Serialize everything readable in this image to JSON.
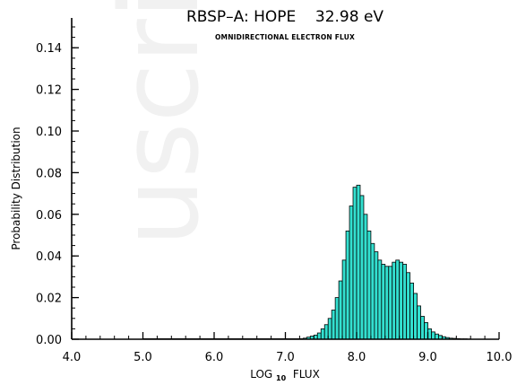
{
  "chart_data": {
    "type": "bar",
    "title": "RBSP–A: HOPE    32.98 eV",
    "subtitle": "OMNIDIRECTIONAL ELECTRON FLUX",
    "xlabel": "LOG₁₀ FLUX",
    "xlabel_main": "LOG",
    "xlabel_sub": "10",
    "xlabel_tail": " FLUX",
    "ylabel": "Probability Distribution",
    "xlim": [
      4.0,
      10.0
    ],
    "ylim": [
      0.0,
      0.15
    ],
    "x_ticks": [
      "4.0",
      "5.0",
      "6.0",
      "7.0",
      "8.0",
      "9.0",
      "10.0"
    ],
    "y_ticks": [
      "0.00",
      "0.02",
      "0.04",
      "0.06",
      "0.08",
      "0.10",
      "0.12",
      "0.14"
    ],
    "bin_width": 0.05,
    "bin_centers": [
      7.275,
      7.325,
      7.375,
      7.425,
      7.475,
      7.525,
      7.575,
      7.625,
      7.675,
      7.725,
      7.775,
      7.825,
      7.875,
      7.925,
      7.975,
      8.025,
      8.075,
      8.125,
      8.175,
      8.225,
      8.275,
      8.325,
      8.375,
      8.425,
      8.475,
      8.525,
      8.575,
      8.625,
      8.675,
      8.725,
      8.775,
      8.825,
      8.875,
      8.925,
      8.975,
      9.025,
      9.075,
      9.125,
      9.175,
      9.225,
      9.275,
      9.325,
      9.375,
      9.425,
      9.475,
      9.525,
      9.575
    ],
    "values": [
      0.0005,
      0.001,
      0.0015,
      0.002,
      0.003,
      0.005,
      0.007,
      0.01,
      0.014,
      0.02,
      0.028,
      0.038,
      0.052,
      0.064,
      0.073,
      0.074,
      0.069,
      0.06,
      0.052,
      0.046,
      0.042,
      0.038,
      0.036,
      0.035,
      0.035,
      0.037,
      0.038,
      0.037,
      0.036,
      0.032,
      0.027,
      0.022,
      0.016,
      0.011,
      0.008,
      0.005,
      0.0035,
      0.0025,
      0.0018,
      0.0012,
      0.0008,
      0.0005,
      0.0004,
      0.0003,
      0.0002,
      0.0002,
      0.0001
    ],
    "bar_fill": "#33e0d0",
    "bar_stroke": "#000000",
    "grid": false
  }
}
